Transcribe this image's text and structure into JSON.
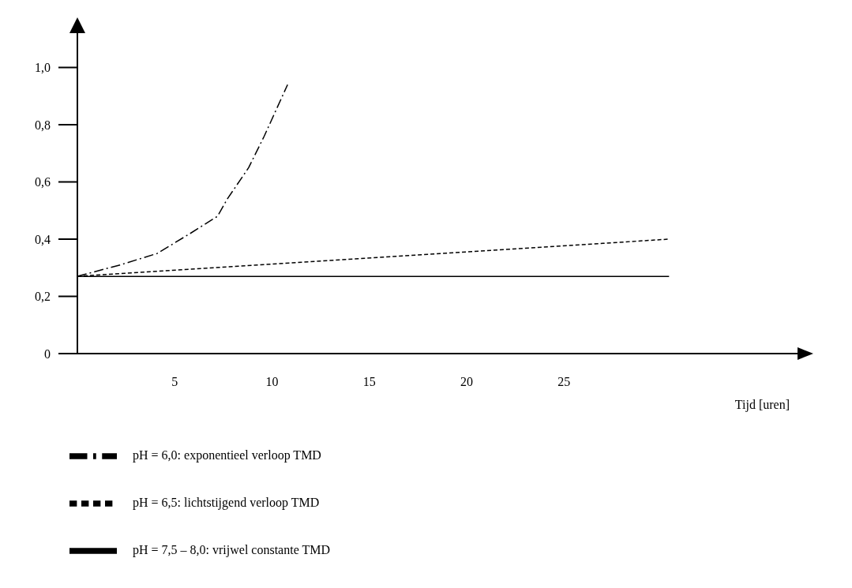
{
  "chart_data": {
    "type": "line",
    "xlabel": "Tijd [uren]",
    "xlim": [
      0,
      37
    ],
    "ylim": [
      0,
      1.12
    ],
    "xticks": [
      5,
      10,
      15,
      20,
      25
    ],
    "yticks": [
      0,
      {
        "value": 0.2,
        "label": "0,2"
      },
      {
        "value": 0.4,
        "label": "0,4"
      },
      {
        "value": 0.6,
        "label": "0,6"
      },
      {
        "value": 0.8,
        "label": "0,8"
      },
      {
        "value": 1.0,
        "label": "1,0"
      }
    ],
    "legend": "bottom",
    "grid": false,
    "series": [
      {
        "name": "pH = 6,0: exponentieel verloop TMD",
        "color": "#000000",
        "line_style": "dashdot",
        "x": [
          0,
          2.2,
          4.1,
          5.8,
          7.2,
          7.7,
          8.8,
          9.6,
          10.8
        ],
        "values": [
          0.27,
          0.31,
          0.35,
          0.42,
          0.48,
          0.54,
          0.65,
          0.76,
          0.94
        ]
      },
      {
        "name": "pH = 6,5: lichtstijgend verloop TMD",
        "color": "#000000",
        "line_style": "dashed",
        "x": [
          0,
          30.4
        ],
        "values": [
          0.27,
          0.4
        ]
      },
      {
        "name": "pH = 7,5 – 8,0: vrijwel constante TMD",
        "color": "#000000",
        "line_style": "solid",
        "x": [
          0,
          30.4
        ],
        "values": [
          0.27,
          0.27
        ]
      }
    ]
  }
}
